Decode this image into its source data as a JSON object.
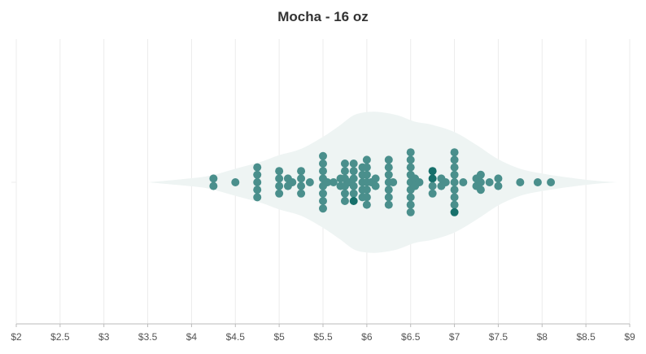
{
  "chart_data": {
    "type": "scatter",
    "subtype": "beeswarm-violin",
    "title": "Mocha - 16 oz",
    "xlabel": "",
    "ylabel": "",
    "xlim": [
      2,
      9
    ],
    "xticks": [
      "$2",
      "$2.5",
      "$3",
      "$3.5",
      "$4",
      "$4.5",
      "$5",
      "$5.5",
      "$6",
      "$6.5",
      "$7",
      "$7.5",
      "$8",
      "$8.5",
      "$9"
    ],
    "grid": "vertical",
    "colors": {
      "point": "#4a8f8c",
      "highlight": "#17706b",
      "violin": "#eef4f3",
      "grid": "#ececec",
      "axis": "#bbbbbb"
    },
    "density": [
      [
        3.5,
        0.0
      ],
      [
        3.9,
        0.04
      ],
      [
        4.2,
        0.08
      ],
      [
        4.5,
        0.17
      ],
      [
        4.8,
        0.26
      ],
      [
        5.0,
        0.34
      ],
      [
        5.25,
        0.42
      ],
      [
        5.5,
        0.57
      ],
      [
        5.7,
        0.72
      ],
      [
        5.85,
        0.84
      ],
      [
        6.0,
        0.88
      ],
      [
        6.15,
        0.88
      ],
      [
        6.35,
        0.84
      ],
      [
        6.55,
        0.76
      ],
      [
        6.75,
        0.72
      ],
      [
        7.0,
        0.63
      ],
      [
        7.25,
        0.47
      ],
      [
        7.5,
        0.29
      ],
      [
        7.75,
        0.17
      ],
      [
        8.0,
        0.11
      ],
      [
        8.3,
        0.06
      ],
      [
        8.6,
        0.02
      ],
      [
        8.85,
        0.0
      ]
    ],
    "columns": [
      {
        "x": 4.25,
        "count": 2
      },
      {
        "x": 4.5,
        "count": 1
      },
      {
        "x": 4.75,
        "count": 5
      },
      {
        "x": 5.0,
        "count": 4
      },
      {
        "x": 5.1,
        "count": 2
      },
      {
        "x": 5.15,
        "count": 1
      },
      {
        "x": 5.25,
        "count": 4
      },
      {
        "x": 5.35,
        "count": 1
      },
      {
        "x": 5.5,
        "count": 8
      },
      {
        "x": 5.55,
        "count": 1
      },
      {
        "x": 5.62,
        "count": 1
      },
      {
        "x": 5.7,
        "count": 2
      },
      {
        "x": 5.75,
        "count": 6
      },
      {
        "x": 5.8,
        "count": 1
      },
      {
        "x": 5.85,
        "count": 6,
        "highlight": [
          5
        ]
      },
      {
        "x": 5.95,
        "count": 5
      },
      {
        "x": 6.0,
        "count": 7
      },
      {
        "x": 6.05,
        "count": 1
      },
      {
        "x": 6.1,
        "count": 2
      },
      {
        "x": 6.25,
        "count": 7
      },
      {
        "x": 6.3,
        "count": 1
      },
      {
        "x": 6.5,
        "count": 9
      },
      {
        "x": 6.55,
        "count": 2
      },
      {
        "x": 6.6,
        "count": 1
      },
      {
        "x": 6.75,
        "count": 4,
        "highlight": [
          0,
          1
        ]
      },
      {
        "x": 6.85,
        "count": 2
      },
      {
        "x": 6.9,
        "count": 1
      },
      {
        "x": 7.0,
        "count": 9,
        "highlight": [
          8
        ]
      },
      {
        "x": 7.1,
        "count": 1
      },
      {
        "x": 7.25,
        "count": 2
      },
      {
        "x": 7.3,
        "count": 3
      },
      {
        "x": 7.4,
        "count": 1
      },
      {
        "x": 7.5,
        "count": 2
      },
      {
        "x": 7.75,
        "count": 1
      },
      {
        "x": 7.95,
        "count": 1
      },
      {
        "x": 8.1,
        "count": 1
      }
    ]
  }
}
